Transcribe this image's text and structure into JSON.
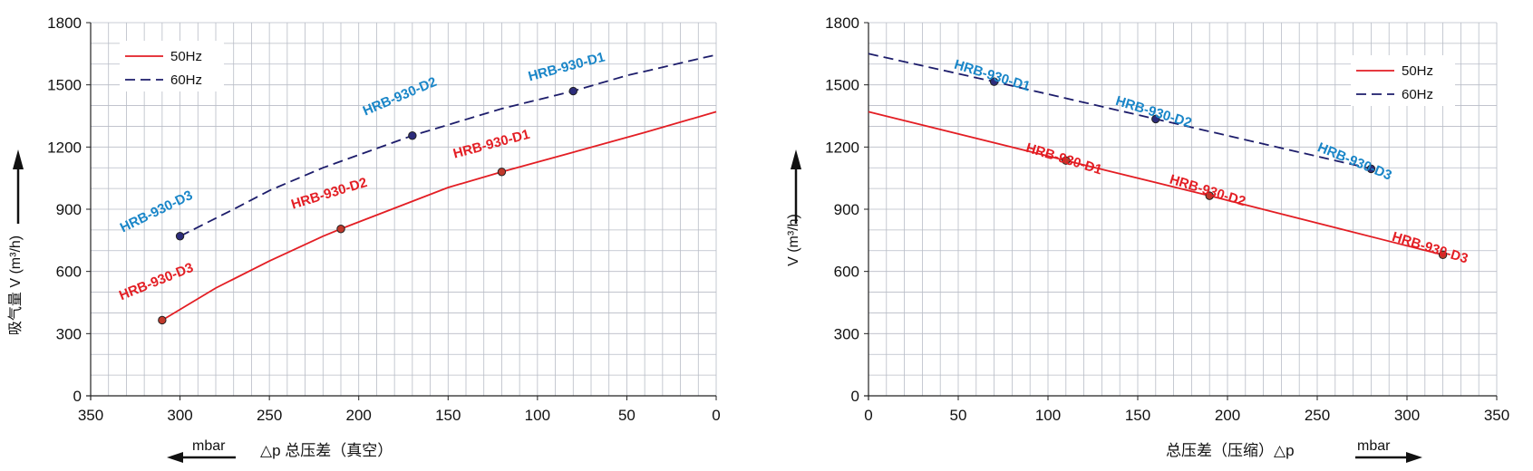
{
  "colors": {
    "hz50": "#e31e24",
    "hz60": "#1d1d6b",
    "label_50": "#e31e24",
    "label_60": "#1a86c8",
    "grid": "#b8bcc6",
    "axis": "#222222",
    "arrow": "#111111"
  },
  "chart_data": [
    {
      "type": "line",
      "title": "",
      "xlabel": "△p 总压差（真空）",
      "xunit": "mbar",
      "ylabel": "吸气量 V (m³/h)",
      "x_reversed": true,
      "xlim": [
        0,
        350
      ],
      "ylim": [
        0,
        1800
      ],
      "xticks": [
        350,
        300,
        250,
        200,
        150,
        100,
        50,
        0
      ],
      "yticks": [
        0,
        300,
        600,
        900,
        1200,
        1500,
        1800
      ],
      "grid": true,
      "legend_position": "top-left",
      "series": [
        {
          "name": "50Hz",
          "style": "solid",
          "x": [
            310,
            280,
            250,
            220,
            210,
            180,
            150,
            120,
            80,
            40,
            0
          ],
          "y": [
            365,
            520,
            650,
            770,
            805,
            905,
            1005,
            1080,
            1175,
            1270,
            1370
          ]
        },
        {
          "name": "60Hz",
          "style": "dashed",
          "x": [
            300,
            270,
            250,
            220,
            170,
            120,
            80,
            50,
            20,
            0
          ],
          "y": [
            770,
            900,
            990,
            1100,
            1255,
            1385,
            1470,
            1545,
            1605,
            1645
          ]
        }
      ],
      "points": [
        {
          "label": "HRB-930-D3",
          "series": "50Hz",
          "x": 310,
          "y": 365
        },
        {
          "label": "HRB-930-D2",
          "series": "50Hz",
          "x": 210,
          "y": 805
        },
        {
          "label": "HRB-930-D1",
          "series": "50Hz",
          "x": 120,
          "y": 1080
        },
        {
          "label": "HRB-930-D3",
          "series": "60Hz",
          "x": 300,
          "y": 770
        },
        {
          "label": "HRB-930-D2",
          "series": "60Hz",
          "x": 170,
          "y": 1255
        },
        {
          "label": "HRB-930-D1",
          "series": "60Hz",
          "x": 80,
          "y": 1470
        }
      ]
    },
    {
      "type": "line",
      "title": "",
      "xlabel": "总压差（压缩）△p",
      "xunit": "mbar",
      "ylabel": "V (m³/h)",
      "x_reversed": false,
      "xlim": [
        0,
        350
      ],
      "ylim": [
        0,
        1800
      ],
      "xticks": [
        0,
        50,
        100,
        150,
        200,
        250,
        300,
        350
      ],
      "yticks": [
        0,
        300,
        600,
        900,
        1200,
        1500,
        1800
      ],
      "grid": true,
      "legend_position": "top-right",
      "series": [
        {
          "name": "50Hz",
          "style": "solid",
          "x": [
            0,
            110,
            190,
            320
          ],
          "y": [
            1370,
            1135,
            965,
            680
          ]
        },
        {
          "name": "60Hz",
          "style": "dashed",
          "x": [
            0,
            70,
            160,
            280
          ],
          "y": [
            1650,
            1515,
            1335,
            1095
          ]
        }
      ],
      "points": [
        {
          "label": "HRB-930-D1",
          "series": "50Hz",
          "x": 110,
          "y": 1135
        },
        {
          "label": "HRB-930-D2",
          "series": "50Hz",
          "x": 190,
          "y": 965
        },
        {
          "label": "HRB-930-D3",
          "series": "50Hz",
          "x": 320,
          "y": 680
        },
        {
          "label": "HRB-930-D1",
          "series": "60Hz",
          "x": 70,
          "y": 1515
        },
        {
          "label": "HRB-930-D2",
          "series": "60Hz",
          "x": 160,
          "y": 1335
        },
        {
          "label": "HRB-930-D3",
          "series": "60Hz",
          "x": 280,
          "y": 1095
        }
      ]
    }
  ]
}
